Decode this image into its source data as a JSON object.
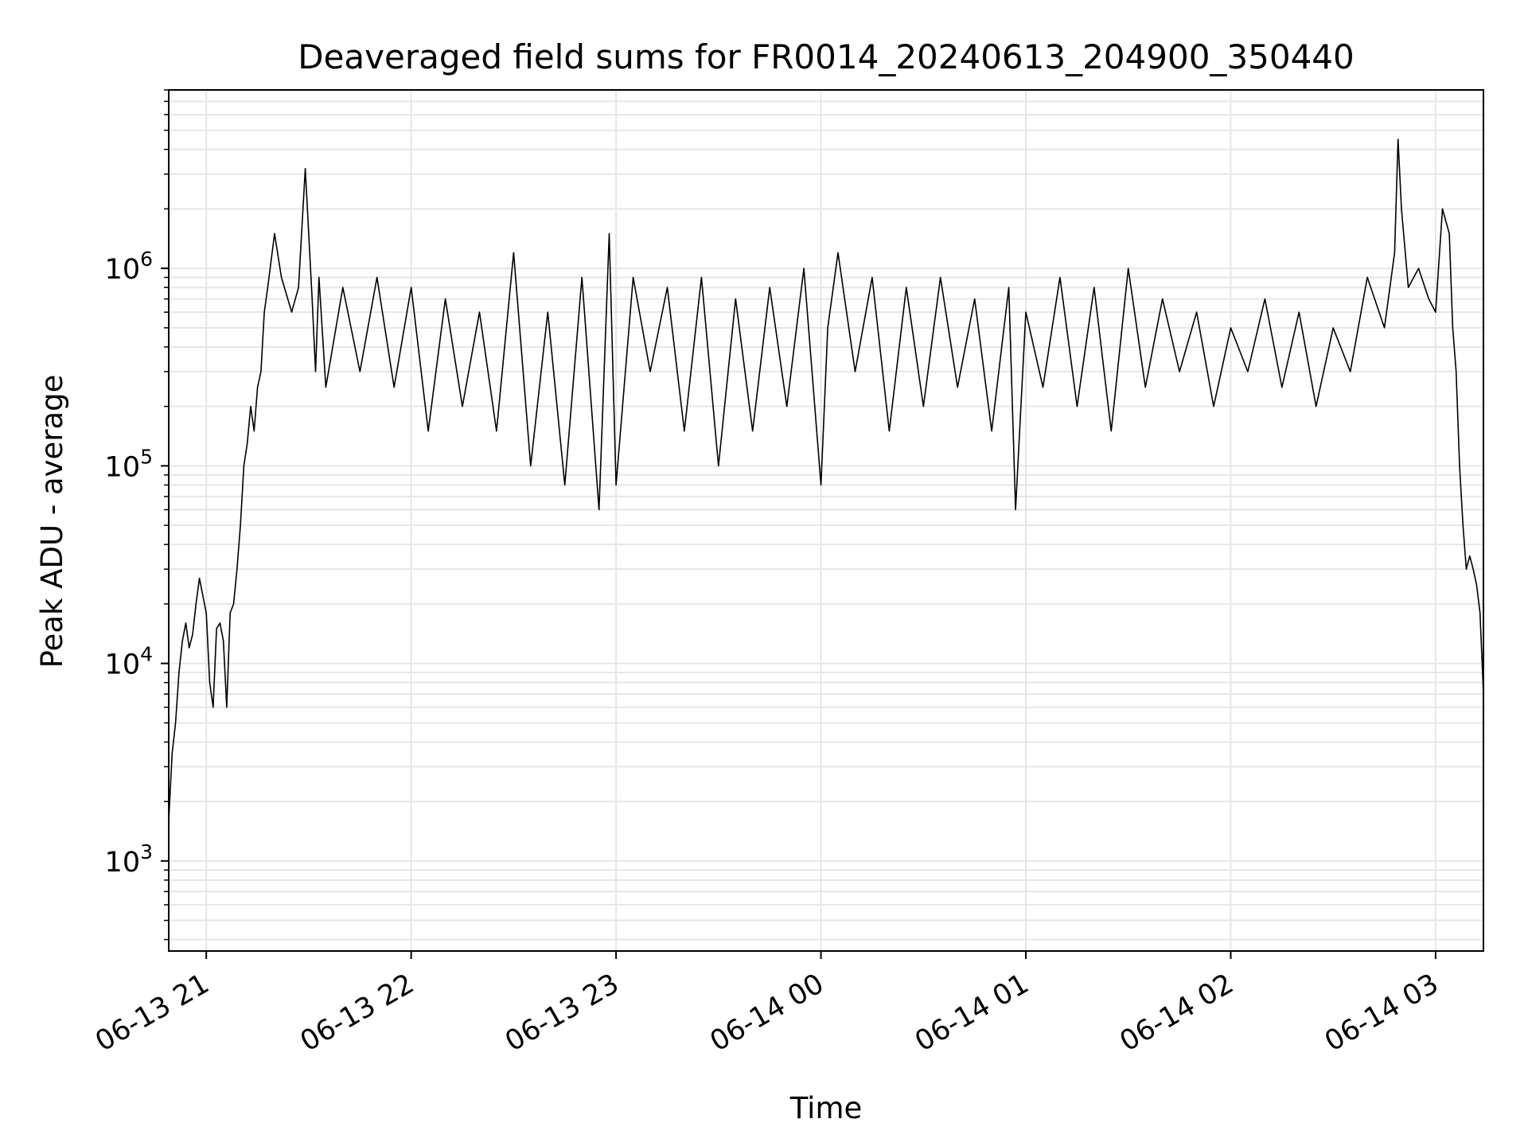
{
  "chart_data": {
    "type": "line",
    "title": "Deaveraged field sums for FR0014_20240613_204900_350440",
    "xlabel": "Time",
    "ylabel": "Peak ADU - average",
    "x_scale": "time",
    "y_scale": "log",
    "xlim": [
      "2024-06-13 20:49",
      "2024-06-14 03:14"
    ],
    "ylim": [
      350,
      8000000
    ],
    "x_ticks": [
      "06-13 21",
      "06-13 22",
      "06-13 23",
      "06-14 00",
      "06-14 01",
      "06-14 02",
      "06-14 03"
    ],
    "y_ticks": [
      {
        "value": 1000,
        "base": "10",
        "exp": "3"
      },
      {
        "value": 10000,
        "base": "10",
        "exp": "4"
      },
      {
        "value": 100000,
        "base": "10",
        "exp": "5"
      },
      {
        "value": 1000000,
        "base": "10",
        "exp": "6"
      }
    ],
    "grid": true,
    "line_color": "#000000",
    "grid_color": "#e6e6e6",
    "series": [
      {
        "x": [
          "2024-06-13 20:49",
          "2024-06-13 20:50",
          "2024-06-13 20:51",
          "2024-06-13 20:52",
          "2024-06-13 20:53",
          "2024-06-13 20:54",
          "2024-06-13 20:55",
          "2024-06-13 20:56",
          "2024-06-13 20:57",
          "2024-06-13 20:58",
          "2024-06-13 20:59",
          "2024-06-13 21:00",
          "2024-06-13 21:01",
          "2024-06-13 21:02",
          "2024-06-13 21:03",
          "2024-06-13 21:04",
          "2024-06-13 21:05",
          "2024-06-13 21:06",
          "2024-06-13 21:07",
          "2024-06-13 21:08",
          "2024-06-13 21:09",
          "2024-06-13 21:10",
          "2024-06-13 21:11",
          "2024-06-13 21:12",
          "2024-06-13 21:13",
          "2024-06-13 21:14",
          "2024-06-13 21:15",
          "2024-06-13 21:16",
          "2024-06-13 21:17",
          "2024-06-13 21:18",
          "2024-06-13 21:20",
          "2024-06-13 21:22",
          "2024-06-13 21:25",
          "2024-06-13 21:27",
          "2024-06-13 21:29",
          "2024-06-13 21:31",
          "2024-06-13 21:32",
          "2024-06-13 21:33",
          "2024-06-13 21:35",
          "2024-06-13 21:40",
          "2024-06-13 21:45",
          "2024-06-13 21:50",
          "2024-06-13 21:55",
          "2024-06-13 22:00",
          "2024-06-13 22:05",
          "2024-06-13 22:10",
          "2024-06-13 22:15",
          "2024-06-13 22:20",
          "2024-06-13 22:25",
          "2024-06-13 22:30",
          "2024-06-13 22:35",
          "2024-06-13 22:40",
          "2024-06-13 22:45",
          "2024-06-13 22:50",
          "2024-06-13 22:55",
          "2024-06-13 22:58",
          "2024-06-13 23:00",
          "2024-06-13 23:05",
          "2024-06-13 23:10",
          "2024-06-13 23:15",
          "2024-06-13 23:20",
          "2024-06-13 23:25",
          "2024-06-13 23:30",
          "2024-06-13 23:35",
          "2024-06-13 23:40",
          "2024-06-13 23:45",
          "2024-06-13 23:50",
          "2024-06-13 23:55",
          "2024-06-14 00:00",
          "2024-06-14 00:02",
          "2024-06-14 00:05",
          "2024-06-14 00:10",
          "2024-06-14 00:15",
          "2024-06-14 00:20",
          "2024-06-14 00:25",
          "2024-06-14 00:30",
          "2024-06-14 00:35",
          "2024-06-14 00:40",
          "2024-06-14 00:45",
          "2024-06-14 00:50",
          "2024-06-14 00:55",
          "2024-06-14 00:57",
          "2024-06-14 01:00",
          "2024-06-14 01:05",
          "2024-06-14 01:10",
          "2024-06-14 01:15",
          "2024-06-14 01:20",
          "2024-06-14 01:25",
          "2024-06-14 01:30",
          "2024-06-14 01:35",
          "2024-06-14 01:40",
          "2024-06-14 01:45",
          "2024-06-14 01:50",
          "2024-06-14 01:55",
          "2024-06-14 02:00",
          "2024-06-14 02:05",
          "2024-06-14 02:10",
          "2024-06-14 02:15",
          "2024-06-14 02:20",
          "2024-06-14 02:25",
          "2024-06-14 02:30",
          "2024-06-14 02:35",
          "2024-06-14 02:40",
          "2024-06-14 02:45",
          "2024-06-14 02:48",
          "2024-06-14 02:49",
          "2024-06-14 02:50",
          "2024-06-14 02:52",
          "2024-06-14 02:55",
          "2024-06-14 02:58",
          "2024-06-14 03:00",
          "2024-06-14 03:02",
          "2024-06-14 03:04",
          "2024-06-14 03:05",
          "2024-06-14 03:06",
          "2024-06-14 03:07",
          "2024-06-14 03:08",
          "2024-06-14 03:09",
          "2024-06-14 03:10",
          "2024-06-14 03:11",
          "2024-06-14 03:12",
          "2024-06-14 03:13",
          "2024-06-14 03:14"
        ],
        "y": [
          1600,
          3500,
          5000,
          9000,
          13000,
          16000,
          12000,
          14000,
          20000,
          27000,
          22000,
          18000,
          8000,
          6000,
          15000,
          16000,
          13000,
          6000,
          18000,
          20000,
          30000,
          50000,
          100000,
          130000,
          200000,
          150000,
          250000,
          300000,
          600000,
          800000,
          1500000,
          900000,
          600000,
          800000,
          3200000,
          700000,
          300000,
          900000,
          250000,
          800000,
          300000,
          900000,
          250000,
          800000,
          150000,
          700000,
          200000,
          600000,
          150000,
          1200000,
          100000,
          600000,
          80000,
          900000,
          60000,
          1500000,
          80000,
          900000,
          300000,
          800000,
          150000,
          900000,
          100000,
          700000,
          150000,
          800000,
          200000,
          1000000,
          80000,
          500000,
          1200000,
          300000,
          900000,
          150000,
          800000,
          200000,
          900000,
          250000,
          700000,
          150000,
          800000,
          60000,
          600000,
          250000,
          900000,
          200000,
          800000,
          150000,
          1000000,
          250000,
          700000,
          300000,
          600000,
          200000,
          500000,
          300000,
          700000,
          250000,
          600000,
          200000,
          500000,
          300000,
          900000,
          500000,
          1200000,
          4500000,
          2000000,
          800000,
          1000000,
          700000,
          600000,
          2000000,
          1500000,
          500000,
          300000,
          100000,
          50000,
          30000,
          35000,
          30000,
          25000,
          18000,
          7000
        ]
      }
    ]
  }
}
